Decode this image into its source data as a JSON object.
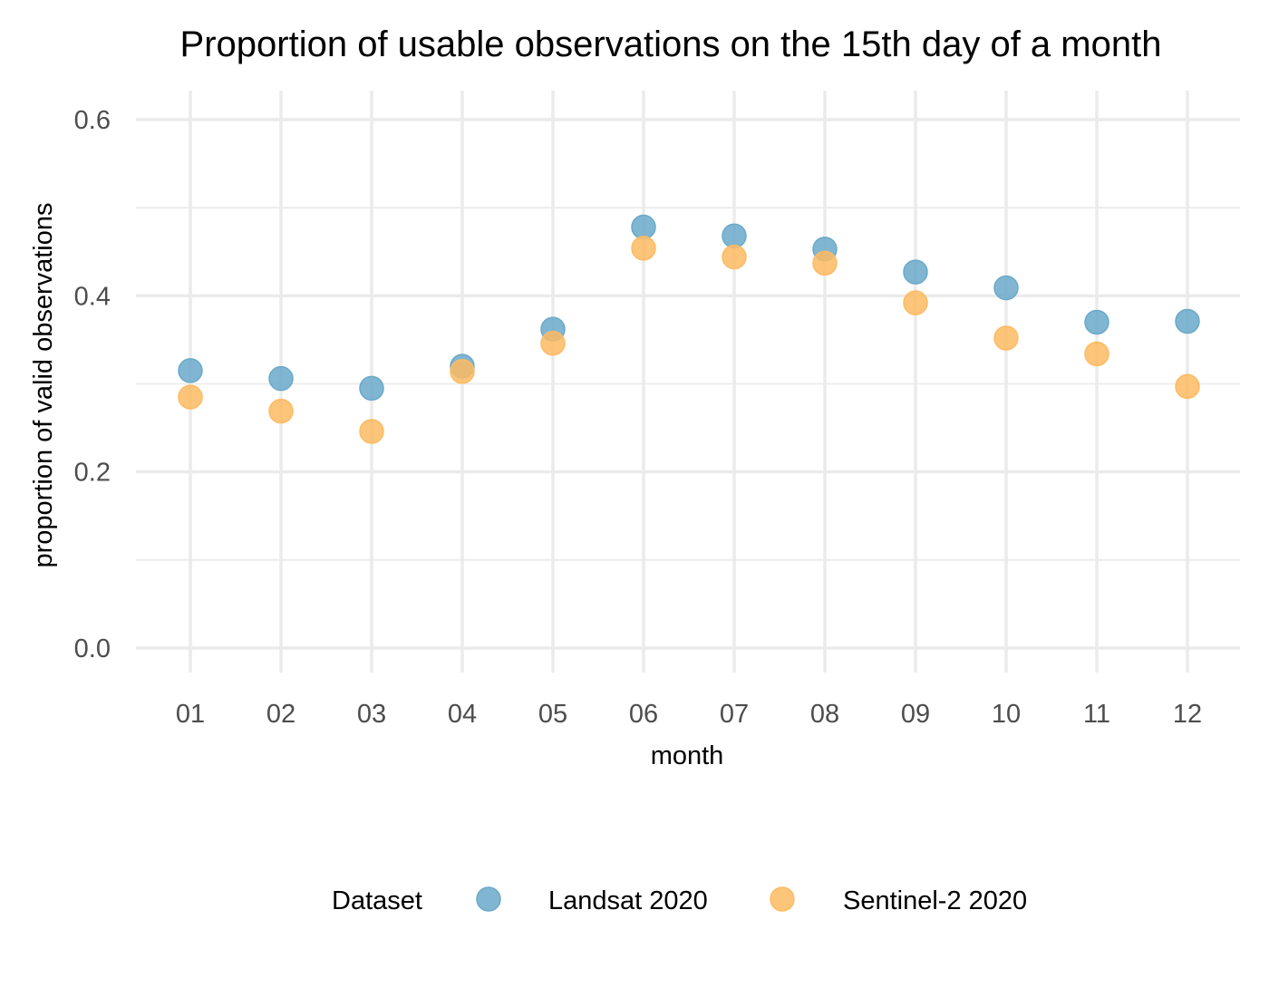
{
  "chart_data": {
    "type": "scatter",
    "title": "Proportion of usable observations on the 15th day of a month",
    "xlabel": "month",
    "ylabel": "proportion of valid observations",
    "categories": [
      "01",
      "02",
      "03",
      "04",
      "05",
      "06",
      "07",
      "08",
      "09",
      "10",
      "11",
      "12"
    ],
    "ylim": [
      -0.02,
      0.63
    ],
    "yticks": [
      0.0,
      0.2,
      0.4,
      0.6
    ],
    "ytick_labels": [
      "0.0",
      "0.2",
      "0.4",
      "0.6"
    ],
    "yminor_ticks": [
      0.1,
      0.3,
      0.5
    ],
    "grid": true,
    "legend": {
      "title": "Dataset",
      "position": "bottom"
    },
    "series": [
      {
        "name": "Landsat 2020",
        "color": "#6aa9c9",
        "values": [
          0.315,
          0.306,
          0.295,
          0.32,
          0.362,
          0.478,
          0.468,
          0.453,
          0.427,
          0.409,
          0.37,
          0.371
        ]
      },
      {
        "name": "Sentinel-2 2020",
        "color": "#fdbb63",
        "values": [
          0.285,
          0.269,
          0.246,
          0.314,
          0.346,
          0.454,
          0.444,
          0.437,
          0.392,
          0.352,
          0.334,
          0.297
        ]
      }
    ]
  }
}
